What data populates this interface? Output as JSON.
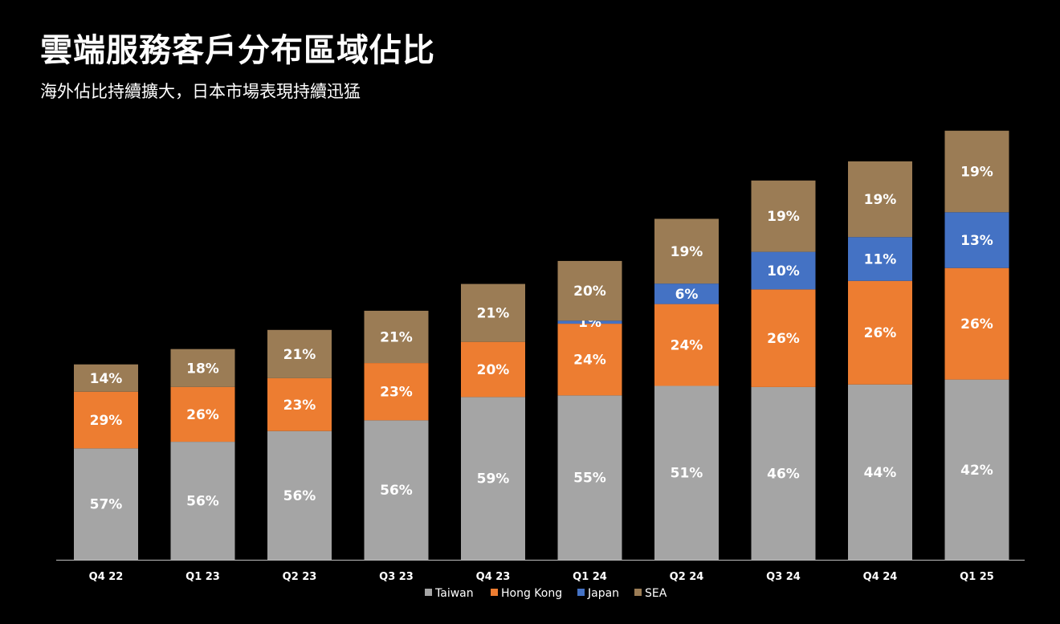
{
  "header": {
    "title": "雲端服務客戶分布區域佔比",
    "subtitle": "海外佔比持續擴大，日本市場表現持續迅猛"
  },
  "chart_data": {
    "type": "bar",
    "stacked": true,
    "categories": [
      "Q4 22",
      "Q1 23",
      "Q2 23",
      "Q3 23",
      "Q4 23",
      "Q1 24",
      "Q2 24",
      "Q3 24",
      "Q4 24",
      "Q1 25"
    ],
    "totals_relative": [
      0.51,
      0.55,
      0.6,
      0.65,
      0.72,
      0.78,
      0.89,
      0.99,
      1.04,
      1.12
    ],
    "series": [
      {
        "name": "Taiwan",
        "color": "#A5A5A5",
        "values": [
          57,
          56,
          56,
          56,
          59,
          55,
          51,
          46,
          44,
          42
        ],
        "labels": [
          "57%",
          "56%",
          "56%",
          "56%",
          "59%",
          "55%",
          "51%",
          "46%",
          "44%",
          "42%"
        ]
      },
      {
        "name": "Hong Kong",
        "color": "#ED7D31",
        "values": [
          29,
          26,
          23,
          23,
          20,
          24,
          24,
          26,
          26,
          26
        ],
        "labels": [
          "29%",
          "26%",
          "23%",
          "23%",
          "20%",
          "24%",
          "24%",
          "26%",
          "26%",
          "26%"
        ]
      },
      {
        "name": "Japan",
        "color": "#4472C4",
        "values": [
          0,
          0,
          0,
          0,
          0,
          1,
          6,
          10,
          11,
          13
        ],
        "labels": [
          "",
          "",
          "",
          "",
          "",
          "1%",
          "6%",
          "10%",
          "11%",
          "13%"
        ]
      },
      {
        "name": "SEA",
        "color": "#9B7C55",
        "values": [
          14,
          18,
          21,
          21,
          21,
          20,
          19,
          19,
          19,
          19
        ],
        "labels": [
          "14%",
          "18%",
          "21%",
          "21%",
          "21%",
          "20%",
          "19%",
          "19%",
          "19%",
          "19%"
        ]
      }
    ],
    "legend_position": "bottom",
    "grid": false
  }
}
